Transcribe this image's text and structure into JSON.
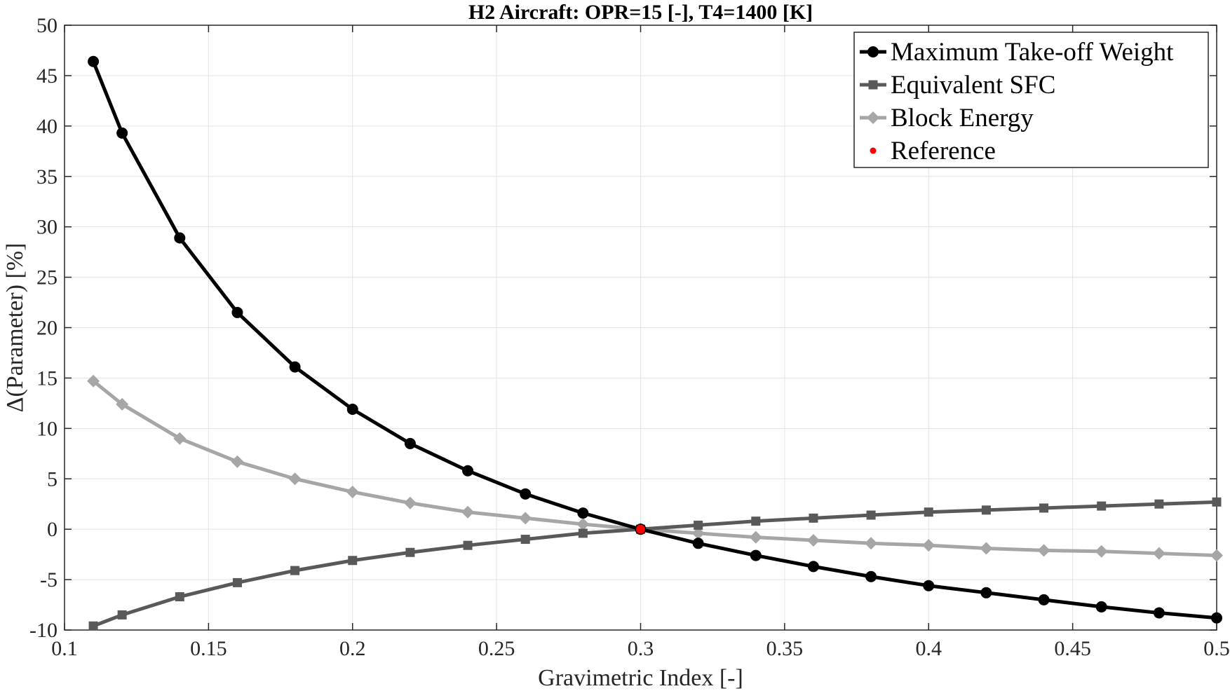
{
  "chart_data": {
    "type": "line",
    "title": "H2 Aircraft: OPR=15 [-], T4=1400 [K]",
    "xlabel": "Gravimetric Index [-]",
    "ylabel": "Δ(Parameter) [%]",
    "xlim": [
      0.1,
      0.5
    ],
    "ylim": [
      -10,
      50
    ],
    "xticks": [
      0.1,
      0.15,
      0.2,
      0.25,
      0.3,
      0.35,
      0.4,
      0.45,
      0.5
    ],
    "xtick_labels": [
      "0.1",
      "0.15",
      "0.2",
      "0.25",
      "0.3",
      "0.35",
      "0.4",
      "0.45",
      "0.5"
    ],
    "yticks": [
      -10,
      -5,
      0,
      5,
      10,
      15,
      20,
      25,
      30,
      35,
      40,
      45,
      50
    ],
    "ytick_labels": [
      "-10",
      "-5",
      "0",
      "5",
      "10",
      "15",
      "20",
      "25",
      "30",
      "35",
      "40",
      "45",
      "50"
    ],
    "grid": true,
    "legend_position": "top-right",
    "x": [
      0.11,
      0.12,
      0.14,
      0.16,
      0.18,
      0.2,
      0.22,
      0.24,
      0.26,
      0.28,
      0.3,
      0.32,
      0.34,
      0.36,
      0.38,
      0.4,
      0.42,
      0.44,
      0.46,
      0.48,
      0.5
    ],
    "series": [
      {
        "name": "Maximum Take-off Weight",
        "marker": "circle",
        "color": "#000000",
        "values": [
          46.4,
          39.3,
          28.9,
          21.5,
          16.1,
          11.9,
          8.5,
          5.8,
          3.5,
          1.6,
          0.0,
          -1.4,
          -2.6,
          -3.7,
          -4.7,
          -5.6,
          -6.3,
          -7.0,
          -7.7,
          -8.3,
          -8.8
        ]
      },
      {
        "name": "Equivalent SFC",
        "marker": "square",
        "color": "#595959",
        "values": [
          -9.6,
          -8.5,
          -6.7,
          -5.3,
          -4.1,
          -3.1,
          -2.3,
          -1.6,
          -1.0,
          -0.4,
          0.0,
          0.4,
          0.8,
          1.1,
          1.4,
          1.7,
          1.9,
          2.1,
          2.3,
          2.5,
          2.7
        ]
      },
      {
        "name": "Block Energy",
        "marker": "diamond",
        "color": "#a6a6a6",
        "values": [
          14.7,
          12.4,
          9.0,
          6.7,
          5.0,
          3.7,
          2.6,
          1.7,
          1.1,
          0.5,
          0.0,
          -0.4,
          -0.8,
          -1.1,
          -1.4,
          -1.6,
          -1.9,
          -2.1,
          -2.2,
          -2.4,
          -2.6
        ]
      }
    ],
    "reference": {
      "name": "Reference",
      "color": "#ff0000",
      "x": 0.3,
      "y": 0.0
    }
  }
}
